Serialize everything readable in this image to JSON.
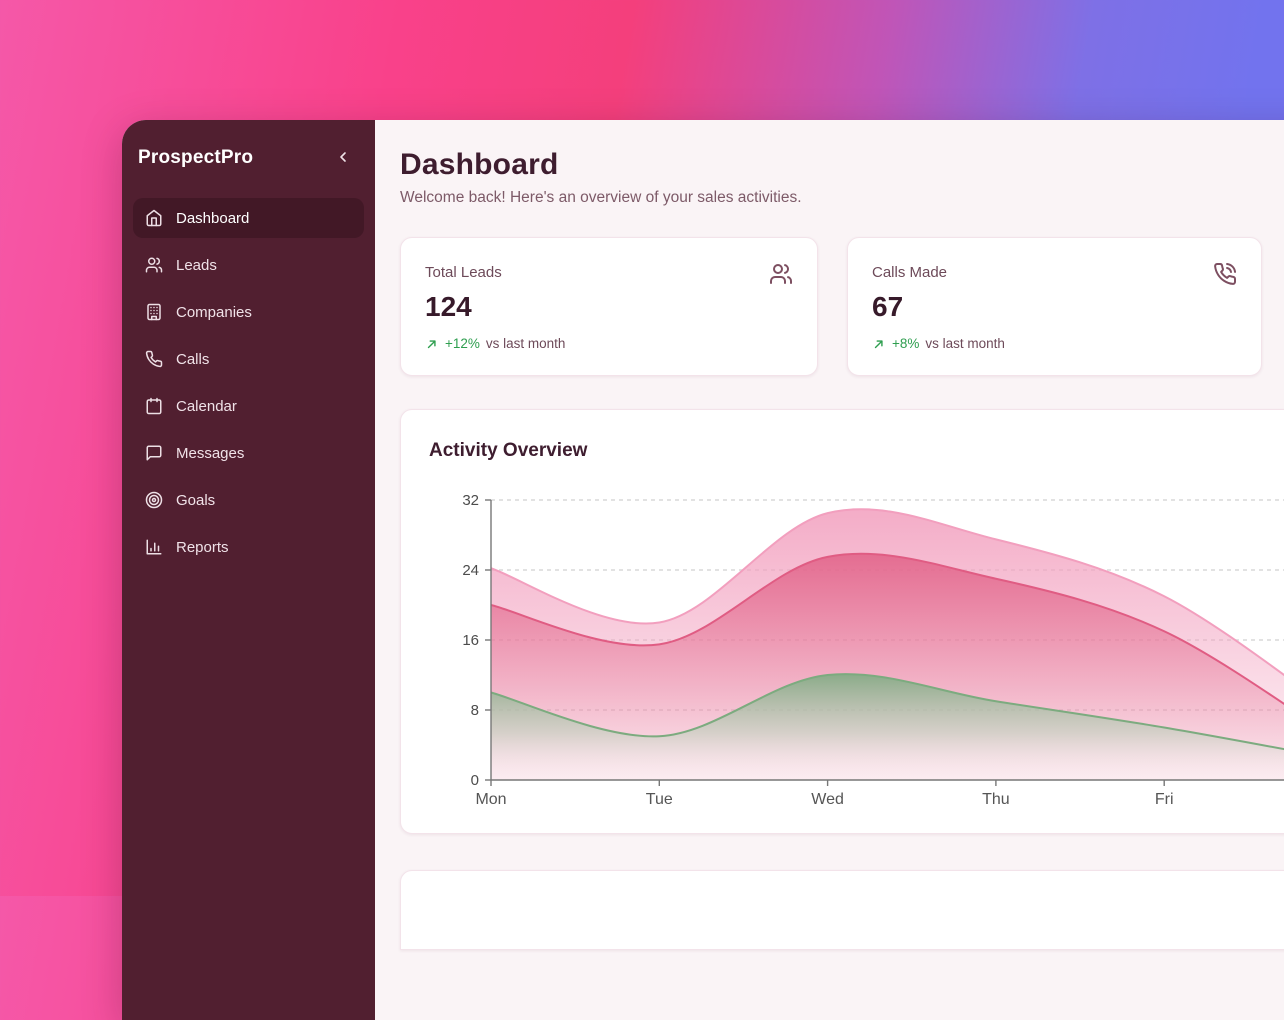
{
  "app": {
    "name": "ProspectPro",
    "colors": {
      "sidebar_bg": "#511f30",
      "sidebar_active_bg": "#421826",
      "content_bg": "#faf4f6",
      "heading": "#3e1d2f",
      "muted": "#6d4a59",
      "positive_green": "#2e9e4f",
      "gradient_pink": "#f9418a",
      "gradient_purple": "#7273ee"
    }
  },
  "sidebar": {
    "items": [
      {
        "label": "Dashboard",
        "icon": "home-icon",
        "active": true
      },
      {
        "label": "Leads",
        "icon": "users-icon",
        "active": false
      },
      {
        "label": "Companies",
        "icon": "building-icon",
        "active": false
      },
      {
        "label": "Calls",
        "icon": "phone-icon",
        "active": false
      },
      {
        "label": "Calendar",
        "icon": "calendar-icon",
        "active": false
      },
      {
        "label": "Messages",
        "icon": "message-icon",
        "active": false
      },
      {
        "label": "Goals",
        "icon": "target-icon",
        "active": false
      },
      {
        "label": "Reports",
        "icon": "bar-chart-icon",
        "active": false
      }
    ]
  },
  "header": {
    "title": "Dashboard",
    "subtitle": "Welcome back! Here's an overview of your sales activities."
  },
  "stats": [
    {
      "label": "Total Leads",
      "value": "124",
      "change": "+12%",
      "change_suffix": "vs last month",
      "icon": "users-icon",
      "trend": "up"
    },
    {
      "label": "Calls Made",
      "value": "67",
      "change": "+8%",
      "change_suffix": "vs last month",
      "icon": "phone-call-icon",
      "trend": "up"
    }
  ],
  "chart_card": {
    "title": "Activity Overview"
  },
  "chart_data": {
    "type": "area",
    "title": "Activity Overview",
    "categories": [
      "Mon",
      "Tue",
      "Wed",
      "Thu",
      "Fri"
    ],
    "note": "chart is clipped at right viewport edge; curves continue declining past Fri",
    "series": [
      {
        "name": "series-light-pink",
        "color": "#f29fbe",
        "values": [
          24.2,
          18,
          30.5,
          27.5,
          21
        ],
        "clipped_next": 8
      },
      {
        "name": "series-pink",
        "color": "#e05c83",
        "values": [
          20,
          15.5,
          25.5,
          23,
          17
        ],
        "clipped_next": 5
      },
      {
        "name": "series-green",
        "color": "#7cab7f",
        "values": [
          10,
          5,
          12,
          9,
          6
        ],
        "clipped_next": 2.5
      }
    ],
    "ylim": [
      0,
      32
    ],
    "yticks": [
      0,
      8,
      16,
      24,
      32
    ],
    "grid": "dashed-horizontal",
    "legend": "none",
    "xlabel": "",
    "ylabel": ""
  }
}
